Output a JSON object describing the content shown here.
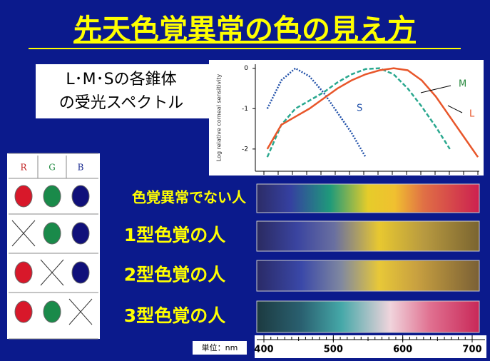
{
  "title": "先天色覚異常の色の見え方",
  "lms_label": [
    "L･M･Sの各錐体",
    "の受光スペクトル"
  ],
  "spectrum_chart": {
    "type": "line",
    "ylabel": "Log relative corneal sensitivity",
    "xlim": [
      385,
      705
    ],
    "ylim": [
      -2.55,
      0.1
    ],
    "yticks": [
      0,
      -1,
      -2
    ],
    "x": [
      400,
      420,
      440,
      460,
      480,
      500,
      520,
      540,
      560,
      580,
      600,
      620,
      640,
      660,
      680,
      700
    ],
    "series": [
      {
        "name": "S",
        "color": "#1f4fa8",
        "dash": "2 2",
        "values": [
          -1.0,
          -0.3,
          0.0,
          -0.2,
          -0.6,
          -1.1,
          -1.6,
          -2.2,
          null,
          null,
          null,
          null,
          null,
          null,
          null,
          null
        ]
      },
      {
        "name": "M",
        "color": "#2aa88f",
        "dash": "6 3",
        "values": [
          -2.2,
          -1.4,
          -1.0,
          -0.8,
          -0.6,
          -0.35,
          -0.15,
          -0.02,
          0.0,
          -0.15,
          -0.5,
          -0.95,
          -1.45,
          -2.0,
          null,
          null
        ]
      },
      {
        "name": "L",
        "color": "#e8562a",
        "dash": "none",
        "values": [
          -2.0,
          -1.4,
          -1.2,
          -1.0,
          -0.75,
          -0.5,
          -0.3,
          -0.15,
          -0.05,
          0.0,
          -0.05,
          -0.3,
          -0.7,
          -1.2,
          -1.7,
          -2.2
        ]
      }
    ]
  },
  "cone_table": {
    "header": [
      "R",
      "G",
      "B"
    ]
  },
  "spectra": [
    "色覚異常でない人",
    "1型色覚の人",
    "2型色覚の人",
    "3型色覚の人"
  ],
  "scale": {
    "unit": "単位：nm",
    "range": [
      400,
      700
    ],
    "ticks": [
      400,
      500,
      600,
      700
    ]
  }
}
